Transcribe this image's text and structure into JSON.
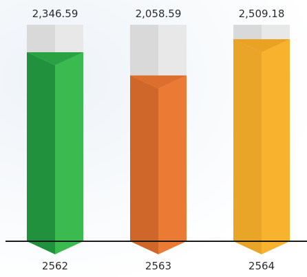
{
  "chart_data": {
    "type": "bar",
    "categories": [
      "2562",
      "2563",
      "2564"
    ],
    "values": [
      2346.59,
      2058.59,
      2509.18
    ],
    "value_labels": [
      "2,346.59",
      "2,058.59",
      "2,509.18"
    ],
    "ylim": [
      0,
      2550
    ],
    "title": "",
    "xlabel": "",
    "ylabel": "",
    "grid": false,
    "colors": {
      "bars": [
        {
          "left": "#22913d",
          "right": "#3bba4f",
          "top": "#2aa243"
        },
        {
          "left": "#cf662a",
          "right": "#ea7a34",
          "top": "#de6e2d"
        },
        {
          "left": "#e9a528",
          "right": "#f9b22d",
          "top": "#eaa223"
        }
      ],
      "track_left": "#d9d9d9",
      "track_right": "#e8e8e8",
      "track_top": "#eeeeee",
      "axis": "#1a1a1a"
    }
  }
}
